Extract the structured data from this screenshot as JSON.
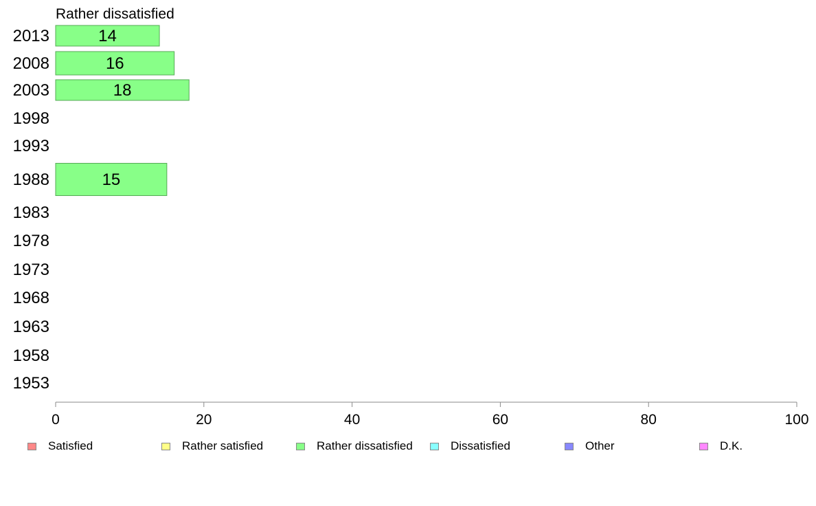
{
  "chart_data": {
    "type": "bar",
    "orientation": "horizontal",
    "title": "Rather dissatisfied",
    "categories": [
      "2013",
      "2008",
      "2003",
      "1998",
      "1993",
      "1988",
      "1983",
      "1978",
      "1973",
      "1968",
      "1963",
      "1958",
      "1953"
    ],
    "series": [
      {
        "name": "Rather dissatisfied",
        "color": "#88ff88",
        "values": [
          14,
          16,
          18,
          null,
          null,
          15,
          null,
          null,
          null,
          null,
          null,
          null,
          null
        ]
      }
    ],
    "xlim": [
      0,
      100
    ],
    "xticks": [
      0,
      20,
      40,
      60,
      80,
      100
    ],
    "grid": false,
    "legend": {
      "placement": "bottom",
      "entries": [
        {
          "label": "Satisfied",
          "color": "#ff8888"
        },
        {
          "label": "Rather satisfied",
          "color": "#ffff88"
        },
        {
          "label": "Rather dissatisfied",
          "color": "#88ff88"
        },
        {
          "label": "Dissatisfied",
          "color": "#88ffff"
        },
        {
          "label": "Other",
          "color": "#8888ff"
        },
        {
          "label": "D.K.",
          "color": "#ff88ff"
        }
      ]
    }
  }
}
